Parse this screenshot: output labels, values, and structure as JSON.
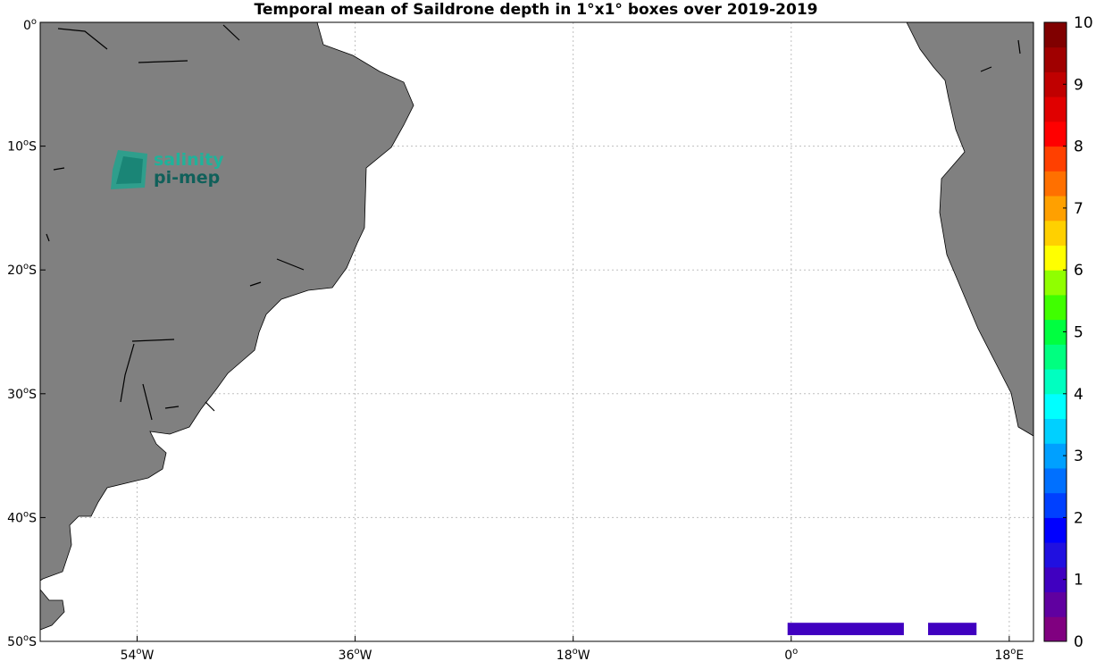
{
  "title": "Temporal mean of Saildrone depth in 1°x1° boxes over 2019-2019",
  "map": {
    "lon_range": [
      -62,
      20
    ],
    "lat_range": [
      -50,
      0
    ],
    "lon_ticks": [
      {
        "value": -54,
        "num": "54",
        "hemi": "W"
      },
      {
        "value": -36,
        "num": "36",
        "hemi": "W"
      },
      {
        "value": -18,
        "num": "18",
        "hemi": "W"
      },
      {
        "value": 0,
        "num": "0",
        "hemi": ""
      },
      {
        "value": 18,
        "num": "18",
        "hemi": "E"
      }
    ],
    "lat_ticks": [
      {
        "value": 0,
        "num": "0",
        "hemi": ""
      },
      {
        "value": -10,
        "num": "10",
        "hemi": "S"
      },
      {
        "value": -20,
        "num": "20",
        "hemi": "S"
      },
      {
        "value": -30,
        "num": "30",
        "hemi": "S"
      },
      {
        "value": -40,
        "num": "40",
        "hemi": "S"
      },
      {
        "value": -50,
        "num": "50",
        "hemi": "S"
      }
    ],
    "grid": true,
    "land_color": "#808080",
    "data_cells": [
      {
        "lon_start": -0.3,
        "lon_end": 9.3,
        "lat_start": -49.5,
        "lat_end": -48.5,
        "value": 0.9
      },
      {
        "lon_start": 11.3,
        "lon_end": 15.3,
        "lat_start": -49.5,
        "lat_end": -48.5,
        "value": 0.9
      }
    ]
  },
  "colorbar": {
    "min": 0,
    "max": 10,
    "tick_labels": [
      "0",
      "1",
      "2",
      "3",
      "4",
      "5",
      "6",
      "7",
      "8",
      "9",
      "10"
    ],
    "colors": [
      "#800080",
      "#6000a0",
      "#4000c0",
      "#2010e0",
      "#0000ff",
      "#0040ff",
      "#0070ff",
      "#00a0ff",
      "#00d0ff",
      "#00ffff",
      "#00ffc0",
      "#00ff80",
      "#00ff40",
      "#40ff00",
      "#90ff00",
      "#ffff00",
      "#ffd000",
      "#ffa000",
      "#ff7000",
      "#ff4000",
      "#ff0000",
      "#e00000",
      "#c00000",
      "#a00000",
      "#800000"
    ]
  },
  "logo": {
    "line1": "salinity",
    "line2": "pi-mep"
  }
}
